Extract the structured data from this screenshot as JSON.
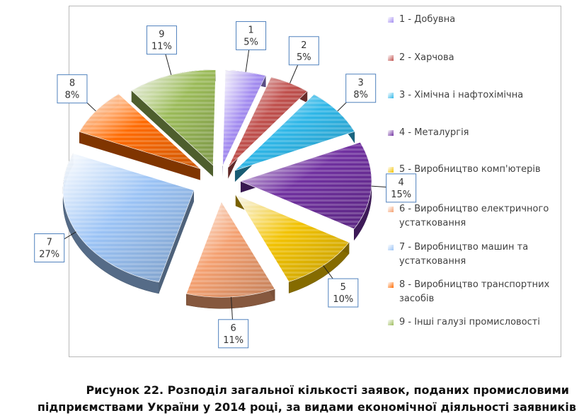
{
  "chart_data": {
    "type": "pie",
    "categories": [
      "1",
      "2",
      "3",
      "4",
      "5",
      "6",
      "7",
      "8",
      "9"
    ],
    "values": [
      5,
      5,
      8,
      15,
      10,
      11,
      27,
      8,
      11
    ],
    "value_labels": [
      "5%",
      "5%",
      "8%",
      "15%",
      "10%",
      "11%",
      "27%",
      "8%",
      "11%"
    ],
    "legend": [
      "1 -  Добувна",
      "2 - Харчова",
      "3 - Хімічна і нафтохімічна",
      "4 - Металургія",
      "5 - Виробництво комп'ютерів",
      "6 - Виробництво електричного устатковання",
      "7 -  Виробництво машин та устатковання",
      "8 - Виробництво транспортних засобів",
      "9 - Інші галузі промисловості"
    ],
    "legend_position": "right",
    "colors": [
      "#a38cf0",
      "#c0504d",
      "#2fb7e8",
      "#7030a0",
      "#f2c200",
      "#f4a070",
      "#9bc3f5",
      "#ff6a00",
      "#9bbb59"
    ]
  },
  "caption": {
    "line1": "Рисунок 22. Розподіл загальної кількості заявок, поданих промисловими",
    "line2": "підприємствами України у 2014 році, за видами економічної діяльності заявників"
  }
}
